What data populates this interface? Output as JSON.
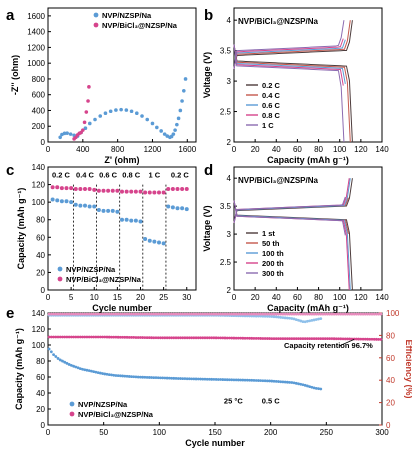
{
  "watermark": "",
  "chart_data": [
    {
      "panel": "a",
      "type": "scatter",
      "xlabel": "Z' (ohm)",
      "ylabel": "-Z'' (ohm)",
      "xlim": [
        0,
        1700
      ],
      "ylim": [
        0,
        1700
      ],
      "xticks": [
        0,
        400,
        800,
        1200,
        1600
      ],
      "yticks": [
        0,
        200,
        400,
        600,
        800,
        1000,
        1200,
        1400,
        1600
      ],
      "legend": "top-right",
      "series": [
        {
          "name": "NVP/NZSP/Na",
          "color": "#5b9bd5",
          "x": [
            140,
            160,
            190,
            220,
            260,
            300,
            340,
            380,
            430,
            480,
            540,
            600,
            660,
            720,
            780,
            840,
            900,
            960,
            1020,
            1080,
            1140,
            1200,
            1250,
            1300,
            1340,
            1370,
            1400,
            1420,
            1440,
            1460,
            1480,
            1500,
            1520,
            1540,
            1560,
            1580
          ],
          "y": [
            60,
            95,
            110,
            112,
            100,
            85,
            75,
            120,
            175,
            235,
            285,
            330,
            365,
            390,
            405,
            410,
            405,
            390,
            365,
            330,
            285,
            235,
            185,
            140,
            100,
            75,
            60,
            70,
            100,
            150,
            220,
            300,
            400,
            520,
            650,
            800
          ]
        },
        {
          "name": "NVP/BiCl₃@NZSP/Na",
          "color": "#d6448c",
          "x": [
            300,
            320,
            340,
            360,
            380,
            400,
            420,
            440,
            460,
            470
          ],
          "y": [
            40,
            60,
            90,
            110,
            120,
            150,
            250,
            380,
            520,
            700
          ]
        }
      ]
    },
    {
      "panel": "b",
      "type": "line",
      "title": "NVP/BiCl₃@NZSP/Na",
      "xlabel": "Capacity (mAh g⁻¹)",
      "ylabel": "Voltage (V)",
      "xlim": [
        0,
        140
      ],
      "ylim": [
        2.0,
        4.2
      ],
      "xticks": [
        0,
        20,
        40,
        60,
        80,
        100,
        120,
        140
      ],
      "yticks": [
        2.0,
        2.5,
        3.0,
        3.5,
        4.0
      ],
      "legend": "bottom-left",
      "series": [
        {
          "name": "0.2 C",
          "color": "#4d3c3c",
          "capacity": 112,
          "charge_plateau": 3.42,
          "discharge_plateau": 3.33
        },
        {
          "name": "0.4 C",
          "color": "#c4584d",
          "capacity": 110,
          "charge_plateau": 3.44,
          "discharge_plateau": 3.31
        },
        {
          "name": "0.6 C",
          "color": "#5b9bd5",
          "capacity": 108,
          "charge_plateau": 3.46,
          "discharge_plateau": 3.29
        },
        {
          "name": "0.8 C",
          "color": "#d6448c",
          "capacity": 106,
          "charge_plateau": 3.48,
          "discharge_plateau": 3.27
        },
        {
          "name": "1 C",
          "color": "#8c6bb1",
          "capacity": 104,
          "charge_plateau": 3.5,
          "discharge_plateau": 3.25
        }
      ]
    },
    {
      "panel": "c",
      "type": "scatter",
      "xlabel": "Cycle number",
      "ylabel": "Capacity (mAh g⁻¹)",
      "xlim": [
        0,
        32
      ],
      "ylim": [
        0,
        140
      ],
      "xticks": [
        0,
        5,
        10,
        15,
        20,
        25,
        30
      ],
      "yticks": [
        0,
        20,
        40,
        60,
        80,
        100,
        120,
        140
      ],
      "rate_labels": [
        "0.2 C",
        "0.4 C",
        "0.6 C",
        "0.8 C",
        "1 C",
        "0.2 C"
      ],
      "rate_label_x": [
        2.8,
        8,
        13,
        18,
        23,
        28.5
      ],
      "rate_boundaries": [
        5.5,
        10.5,
        15.5,
        20.5,
        25.5
      ],
      "legend": "bottom-left",
      "series": [
        {
          "name": "NVP/NZSP/Na",
          "color": "#5b9bd5",
          "x": [
            1,
            2,
            3,
            4,
            5,
            6,
            7,
            8,
            9,
            10,
            11,
            12,
            13,
            14,
            15,
            16,
            17,
            18,
            19,
            20,
            21,
            22,
            23,
            24,
            25,
            26,
            27,
            28,
            29,
            30
          ],
          "y": [
            103,
            102,
            101,
            101,
            100,
            97,
            96,
            96,
            95,
            95,
            91,
            90,
            90,
            90,
            89,
            80,
            80,
            79,
            79,
            78,
            58,
            56,
            55,
            54,
            53,
            95,
            94,
            93,
            93,
            92
          ]
        },
        {
          "name": "NVP/BiCl₃@NZSP/Na",
          "color": "#d6448c",
          "x": [
            1,
            2,
            3,
            4,
            5,
            6,
            7,
            8,
            9,
            10,
            11,
            12,
            13,
            14,
            15,
            16,
            17,
            18,
            19,
            20,
            21,
            22,
            23,
            24,
            25,
            26,
            27,
            28,
            29,
            30
          ],
          "y": [
            117,
            117,
            116,
            116,
            116,
            115,
            115,
            115,
            115,
            114,
            113,
            113,
            113,
            113,
            113,
            112,
            112,
            112,
            112,
            112,
            111,
            111,
            111,
            111,
            111,
            115,
            115,
            115,
            115,
            115
          ]
        }
      ]
    },
    {
      "panel": "d",
      "type": "line",
      "title": "NVP/BiCl₃@NZSP/Na",
      "xlabel": "Capacity (mAh g⁻¹)",
      "ylabel": "Voltage (V)",
      "xlim": [
        0,
        140
      ],
      "ylim": [
        2.0,
        4.2
      ],
      "xticks": [
        0,
        20,
        40,
        60,
        80,
        100,
        120,
        140
      ],
      "yticks": [
        2.0,
        2.5,
        3.0,
        3.5,
        4.0
      ],
      "legend": "bottom-left",
      "series": [
        {
          "name": "1 st",
          "color": "#4d3c3c",
          "capacity": 112,
          "charge_plateau": 3.42,
          "discharge_plateau": 3.34
        },
        {
          "name": "50 th",
          "color": "#c4584d",
          "capacity": 111,
          "charge_plateau": 3.43,
          "discharge_plateau": 3.33
        },
        {
          "name": "100 th",
          "color": "#5b9bd5",
          "capacity": 110,
          "charge_plateau": 3.43,
          "discharge_plateau": 3.33
        },
        {
          "name": "200 th",
          "color": "#d6448c",
          "capacity": 109,
          "charge_plateau": 3.44,
          "discharge_plateau": 3.32
        },
        {
          "name": "300 th",
          "color": "#8c6bb1",
          "capacity": 108,
          "charge_plateau": 3.44,
          "discharge_plateau": 3.32
        }
      ]
    },
    {
      "panel": "e",
      "type": "scatter",
      "xlabel": "Cycle number",
      "ylabel": "Capacity (mAh g⁻¹)",
      "ylabel_right": "Efficiency (%)",
      "xlim": [
        0,
        300
      ],
      "ylim": [
        0,
        140
      ],
      "ylim_right": [
        0,
        100
      ],
      "xticks": [
        0,
        50,
        100,
        150,
        200,
        250,
        300
      ],
      "yticks": [
        0,
        20,
        40,
        60,
        80,
        100,
        120,
        140
      ],
      "yticks_right": [
        0,
        20,
        40,
        60,
        80,
        100
      ],
      "annotations": [
        "Capacity retention 96.7%",
        "25 °C",
        "0.5 C"
      ],
      "legend": "bottom-left",
      "series": [
        {
          "name": "NVP/NZSP/Na",
          "color": "#5b9bd5",
          "axis": "left",
          "x": [
            1,
            5,
            10,
            20,
            30,
            40,
            50,
            60,
            80,
            100,
            120,
            150,
            180,
            200,
            210,
            220,
            230,
            240,
            245
          ],
          "y": [
            95,
            88,
            82,
            75,
            70,
            67,
            64,
            62,
            60,
            59,
            58,
            57,
            56,
            55,
            54,
            53,
            50,
            46,
            45
          ]
        },
        {
          "name": "NVP/BiCl₃@NZSP/Na",
          "color": "#d6448c",
          "axis": "left",
          "x": [
            1,
            50,
            100,
            150,
            200,
            250,
            300
          ],
          "y": [
            110,
            110,
            109,
            109,
            108,
            108,
            107
          ]
        },
        {
          "name": "NVP/NZSP/Na efficiency",
          "color": "#8fc0ea",
          "axis": "right",
          "x": [
            1,
            50,
            100,
            150,
            200,
            220,
            230,
            240,
            245
          ],
          "y": [
            98,
            98,
            98,
            98,
            97,
            95,
            92,
            94,
            95
          ]
        },
        {
          "name": "NVP/BiCl₃@NZSP/Na efficiency",
          "color": "#e88cbd",
          "axis": "right",
          "x": [
            1,
            50,
            100,
            150,
            200,
            250,
            300
          ],
          "y": [
            99,
            99,
            99,
            99,
            99,
            99,
            99
          ]
        }
      ]
    }
  ],
  "labels": {
    "a": "a",
    "b": "b",
    "c": "c",
    "d": "d",
    "e": "e"
  }
}
